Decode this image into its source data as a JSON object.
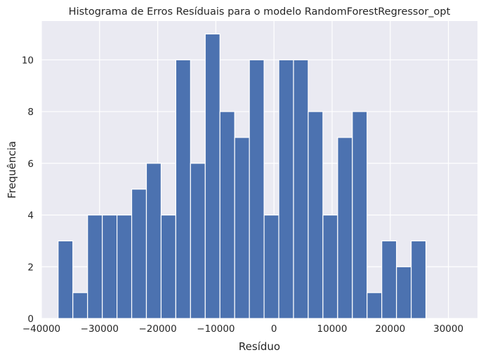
{
  "chart_data": {
    "type": "bar",
    "title": "Histograma de Erros Resíduais para o modelo RandomForestRegressor_opt",
    "xlabel": "Resíduo",
    "ylabel": "Frequência",
    "xlim": [
      -40000,
      35000
    ],
    "ylim": [
      0,
      11.5
    ],
    "xticks": [
      -40000,
      -30000,
      -20000,
      -10000,
      0,
      10000,
      20000,
      30000
    ],
    "xtick_labels": [
      "−40000",
      "−30000",
      "−20000",
      "−10000",
      "0",
      "10000",
      "20000",
      "30000"
    ],
    "yticks": [
      0,
      2,
      4,
      6,
      8,
      10
    ],
    "ytick_labels": [
      "0",
      "2",
      "4",
      "6",
      "8",
      "10"
    ],
    "bins": [
      {
        "x0": -37126,
        "x1": -34596,
        "count": 3
      },
      {
        "x0": -34596,
        "x1": -32066,
        "count": 1
      },
      {
        "x0": -32066,
        "x1": -29535,
        "count": 4
      },
      {
        "x0": -29535,
        "x1": -27005,
        "count": 4
      },
      {
        "x0": -27005,
        "x1": -24475,
        "count": 4
      },
      {
        "x0": -24475,
        "x1": -21945,
        "count": 5
      },
      {
        "x0": -21945,
        "x1": -19414,
        "count": 6
      },
      {
        "x0": -19414,
        "x1": -16884,
        "count": 4
      },
      {
        "x0": -16884,
        "x1": -14354,
        "count": 10
      },
      {
        "x0": -14354,
        "x1": -11824,
        "count": 6
      },
      {
        "x0": -11824,
        "x1": -9293,
        "count": 11
      },
      {
        "x0": -9293,
        "x1": -6763,
        "count": 8
      },
      {
        "x0": -6763,
        "x1": -4233,
        "count": 7
      },
      {
        "x0": -4233,
        "x1": -1703,
        "count": 10
      },
      {
        "x0": -1703,
        "x1": 828,
        "count": 4
      },
      {
        "x0": 828,
        "x1": 3358,
        "count": 10
      },
      {
        "x0": 3358,
        "x1": 5888,
        "count": 10
      },
      {
        "x0": 5888,
        "x1": 8418,
        "count": 8
      },
      {
        "x0": 8418,
        "x1": 10949,
        "count": 4
      },
      {
        "x0": 10949,
        "x1": 13479,
        "count": 7
      },
      {
        "x0": 13479,
        "x1": 16009,
        "count": 8
      },
      {
        "x0": 16009,
        "x1": 18539,
        "count": 1
      },
      {
        "x0": 18539,
        "x1": 21070,
        "count": 3
      },
      {
        "x0": 21070,
        "x1": 23600,
        "count": 2
      },
      {
        "x0": 23600,
        "x1": 26130,
        "count": 3
      }
    ],
    "grid": true,
    "colors": {
      "bar": "#4c72b0",
      "bar_edge": "#ffffff",
      "plot_background": "#eaeaf2",
      "grid": "#ffffff",
      "text": "#262626"
    }
  }
}
